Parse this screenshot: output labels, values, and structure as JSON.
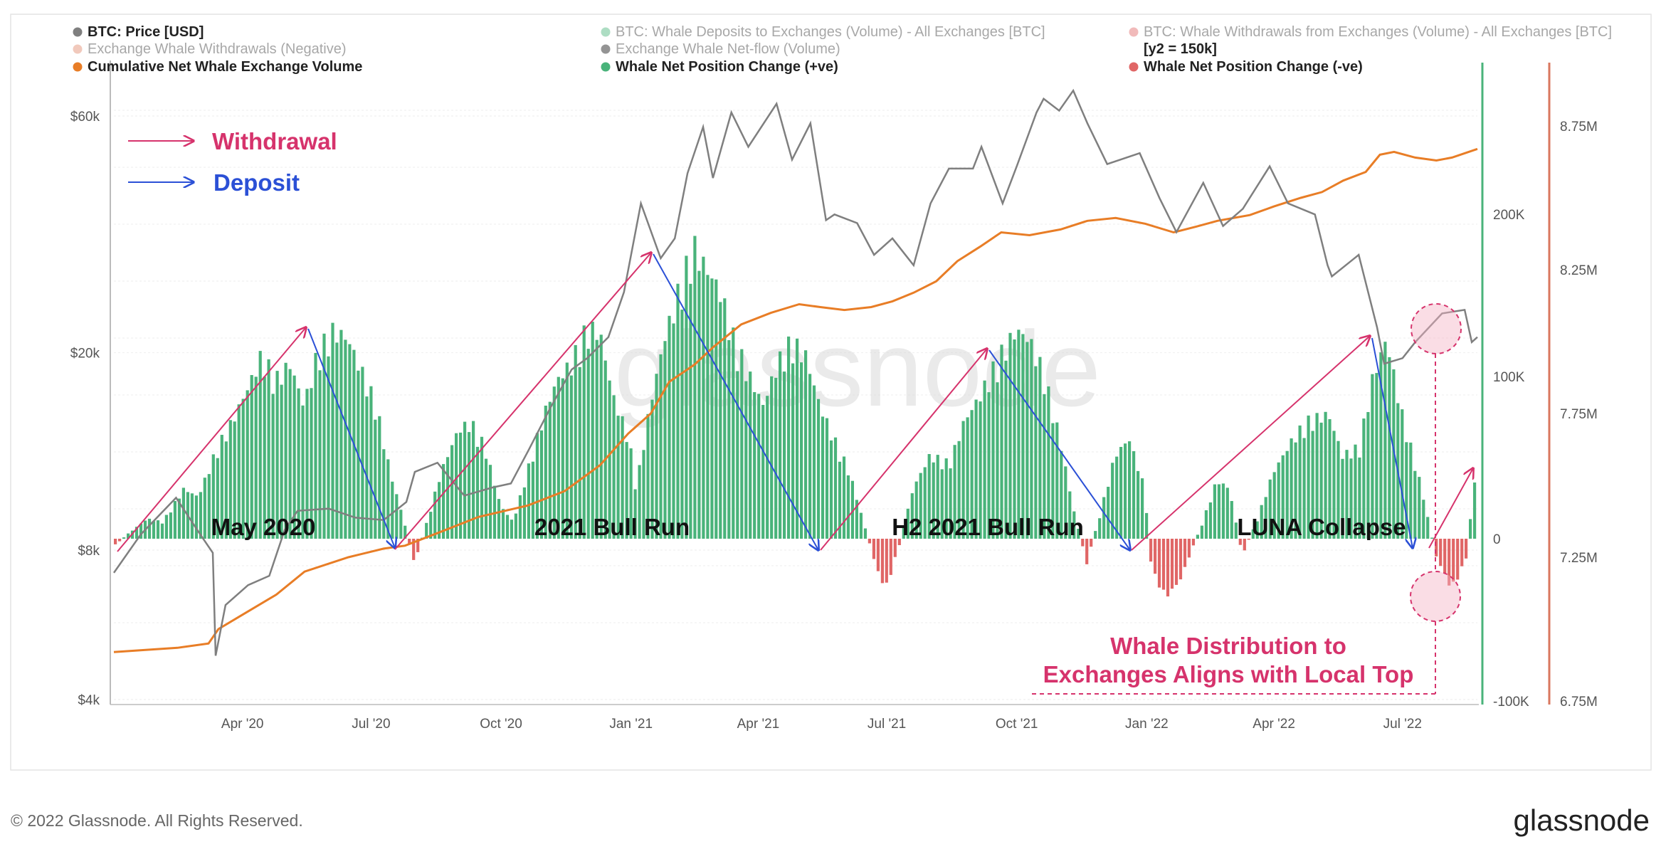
{
  "legend": [
    {
      "label": "BTC: Price [USD]",
      "color": "#7f7f7f",
      "faded": false,
      "col": 0,
      "row": 0
    },
    {
      "label": "Exchange Whale Withdrawals (Negative)",
      "color": "#e0876a",
      "faded": true,
      "col": 0,
      "row": 1
    },
    {
      "label": "Cumulative Net Whale Exchange Volume",
      "color": "#e87d26",
      "faded": false,
      "col": 0,
      "row": 2
    },
    {
      "label": "BTC: Whale Deposits to Exchanges (Volume) - All Exchanges [BTC]",
      "color": "#49b37a",
      "faded": true,
      "col": 1,
      "row": 0
    },
    {
      "label": "Exchange Whale Net-flow (Volume)",
      "color": "#111111",
      "faded": true,
      "col": 1,
      "row": 1
    },
    {
      "label": "Whale Net Position Change (+ve)",
      "color": "#49b37a",
      "faded": false,
      "col": 1,
      "row": 2
    },
    {
      "label": "BTC: Whale Withdrawals from Exchanges (Volume) - All Exchanges [BTC]",
      "color": "#e06666",
      "faded": true,
      "col": 2,
      "row": 0
    },
    {
      "label": "[y2 = 150k]",
      "color": "",
      "faded": false,
      "col": 2,
      "row": 1
    },
    {
      "label": "Whale Net Position Change (-ve)",
      "color": "#e06666",
      "faded": false,
      "col": 2,
      "row": 2
    }
  ],
  "key": {
    "withdrawal": "Withdrawal",
    "deposit": "Deposit",
    "withdrawal_color": "#d6336c",
    "deposit_color": "#2b50d6"
  },
  "annotations": {
    "may2020": "May 2020",
    "bull2021": "2021 Bull Run",
    "h2bull": "H2 2021 Bull Run",
    "luna": "LUNA Collapse",
    "callout_line1": "Whale Distribution to",
    "callout_line2": "Exchanges Aligns with Local Top",
    "callout_color": "#d6336c"
  },
  "watermark": "glassnode",
  "footer": {
    "copyright": "© 2022 Glassnode. All Rights Reserved.",
    "brand": "glassnode"
  },
  "chart_data": {
    "type": "line",
    "x_ticks": [
      "Apr '20",
      "Jul '20",
      "Oct '20",
      "Jan '21",
      "Apr '21",
      "Jul '21",
      "Oct '21",
      "Jan '22",
      "Apr '22",
      "Jul '22"
    ],
    "x_range": [
      "2020-01-01",
      "2022-08-23"
    ],
    "y_left": {
      "label": "BTC: Price [USD]",
      "scale": "log",
      "ticks": [
        "$4k",
        "$8k",
        "$20k",
        "$60k"
      ],
      "tick_values": [
        4000,
        8000,
        20000,
        60000
      ],
      "range": [
        4000,
        75000
      ]
    },
    "y_right1": {
      "label": "Whale Net Position Change [BTC]",
      "ticks": [
        "-100K",
        "0",
        "100K",
        "200K"
      ],
      "tick_values": [
        -100000,
        0,
        100000,
        200000
      ],
      "range": [
        -100000,
        300000
      ],
      "color": "#49b37a"
    },
    "y_right2": {
      "label": "Cumulative Net Whale Exchange Volume",
      "ticks": [
        "6.75M",
        "7.25M",
        "7.75M",
        "8.25M",
        "8.75M"
      ],
      "tick_values": [
        6750000,
        7250000,
        7750000,
        8250000,
        8750000
      ],
      "range": [
        6750000,
        8900000
      ],
      "color": "#e87d26"
    },
    "series": [
      {
        "name": "BTC: Price [USD]",
        "color": "#7f7f7f",
        "axis": "left",
        "points": [
          [
            "2020-01-01",
            7200
          ],
          [
            "2020-01-20",
            8600
          ],
          [
            "2020-02-14",
            10200
          ],
          [
            "2020-03-01",
            8700
          ],
          [
            "2020-03-11",
            7900
          ],
          [
            "2020-03-13",
            4900
          ],
          [
            "2020-03-20",
            6200
          ],
          [
            "2020-04-05",
            6800
          ],
          [
            "2020-04-20",
            7100
          ],
          [
            "2020-05-01",
            8800
          ],
          [
            "2020-05-10",
            9600
          ],
          [
            "2020-06-01",
            9700
          ],
          [
            "2020-06-20",
            9300
          ],
          [
            "2020-07-10",
            9200
          ],
          [
            "2020-07-26",
            10000
          ],
          [
            "2020-08-01",
            11500
          ],
          [
            "2020-08-17",
            12000
          ],
          [
            "2020-09-05",
            10300
          ],
          [
            "2020-09-25",
            10700
          ],
          [
            "2020-10-08",
            10900
          ],
          [
            "2020-10-21",
            12800
          ],
          [
            "2020-11-05",
            15500
          ],
          [
            "2020-11-20",
            18500
          ],
          [
            "2020-12-01",
            19500
          ],
          [
            "2020-12-16",
            21500
          ],
          [
            "2020-12-27",
            26500
          ],
          [
            "2021-01-08",
            40000
          ],
          [
            "2021-01-22",
            31000
          ],
          [
            "2021-02-01",
            34000
          ],
          [
            "2021-02-10",
            46000
          ],
          [
            "2021-02-21",
            57000
          ],
          [
            "2021-02-28",
            45000
          ],
          [
            "2021-03-13",
            61000
          ],
          [
            "2021-03-25",
            52000
          ],
          [
            "2021-04-14",
            63500
          ],
          [
            "2021-04-25",
            49000
          ],
          [
            "2021-05-08",
            58000
          ],
          [
            "2021-05-19",
            37000
          ],
          [
            "2021-05-25",
            38000
          ],
          [
            "2021-06-10",
            36500
          ],
          [
            "2021-06-22",
            31500
          ],
          [
            "2021-07-05",
            34000
          ],
          [
            "2021-07-20",
            30000
          ],
          [
            "2021-08-01",
            40000
          ],
          [
            "2021-08-14",
            47000
          ],
          [
            "2021-08-31",
            47000
          ],
          [
            "2021-09-06",
            52000
          ],
          [
            "2021-09-21",
            40000
          ],
          [
            "2021-10-01",
            47500
          ],
          [
            "2021-10-15",
            61000
          ],
          [
            "2021-10-20",
            65000
          ],
          [
            "2021-10-31",
            61500
          ],
          [
            "2021-11-10",
            67500
          ],
          [
            "2021-11-20",
            58000
          ],
          [
            "2021-12-04",
            48000
          ],
          [
            "2021-12-27",
            50500
          ],
          [
            "2022-01-10",
            41000
          ],
          [
            "2022-01-22",
            35000
          ],
          [
            "2022-02-10",
            44000
          ],
          [
            "2022-02-24",
            36000
          ],
          [
            "2022-03-10",
            39000
          ],
          [
            "2022-03-29",
            47500
          ],
          [
            "2022-04-11",
            40000
          ],
          [
            "2022-04-30",
            38000
          ],
          [
            "2022-05-09",
            30000
          ],
          [
            "2022-05-12",
            28500
          ],
          [
            "2022-05-31",
            31500
          ],
          [
            "2022-06-13",
            22500
          ],
          [
            "2022-06-18",
            19000
          ],
          [
            "2022-07-01",
            19500
          ],
          [
            "2022-07-10",
            21000
          ],
          [
            "2022-07-29",
            24000
          ],
          [
            "2022-08-14",
            24400
          ],
          [
            "2022-08-19",
            21000
          ],
          [
            "2022-08-23",
            21500
          ]
        ]
      },
      {
        "name": "Cumulative Net Whale Exchange Volume",
        "color": "#e87d26",
        "axis": "right2",
        "points": [
          [
            "2020-01-01",
            6920000
          ],
          [
            "2020-02-15",
            6935000
          ],
          [
            "2020-03-08",
            6950000
          ],
          [
            "2020-03-15",
            7000000
          ],
          [
            "2020-04-01",
            7050000
          ],
          [
            "2020-04-25",
            7120000
          ],
          [
            "2020-05-15",
            7200000
          ],
          [
            "2020-06-15",
            7250000
          ],
          [
            "2020-07-10",
            7280000
          ],
          [
            "2020-07-25",
            7290000
          ],
          [
            "2020-08-15",
            7330000
          ],
          [
            "2020-09-15",
            7390000
          ],
          [
            "2020-10-20",
            7430000
          ],
          [
            "2020-11-15",
            7480000
          ],
          [
            "2020-12-10",
            7570000
          ],
          [
            "2020-12-30",
            7680000
          ],
          [
            "2021-01-15",
            7750000
          ],
          [
            "2021-01-28",
            7860000
          ],
          [
            "2021-02-15",
            7920000
          ],
          [
            "2021-02-28",
            7980000
          ],
          [
            "2021-03-20",
            8060000
          ],
          [
            "2021-04-10",
            8100000
          ],
          [
            "2021-04-30",
            8130000
          ],
          [
            "2021-05-15",
            8120000
          ],
          [
            "2021-06-01",
            8110000
          ],
          [
            "2021-06-20",
            8120000
          ],
          [
            "2021-07-05",
            8140000
          ],
          [
            "2021-07-20",
            8170000
          ],
          [
            "2021-08-05",
            8210000
          ],
          [
            "2021-08-20",
            8280000
          ],
          [
            "2021-09-05",
            8330000
          ],
          [
            "2021-09-20",
            8380000
          ],
          [
            "2021-10-10",
            8370000
          ],
          [
            "2021-11-01",
            8390000
          ],
          [
            "2021-11-20",
            8420000
          ],
          [
            "2021-12-10",
            8430000
          ],
          [
            "2021-12-31",
            8410000
          ],
          [
            "2022-01-20",
            8380000
          ],
          [
            "2022-02-05",
            8400000
          ],
          [
            "2022-02-20",
            8420000
          ],
          [
            "2022-03-15",
            8440000
          ],
          [
            "2022-04-01",
            8470000
          ],
          [
            "2022-04-20",
            8500000
          ],
          [
            "2022-05-05",
            8520000
          ],
          [
            "2022-05-20",
            8560000
          ],
          [
            "2022-06-05",
            8590000
          ],
          [
            "2022-06-15",
            8650000
          ],
          [
            "2022-06-25",
            8660000
          ],
          [
            "2022-07-10",
            8640000
          ],
          [
            "2022-07-25",
            8630000
          ],
          [
            "2022-08-05",
            8640000
          ],
          [
            "2022-08-23",
            8670000
          ]
        ]
      },
      {
        "name": "Whale Net Position Change",
        "type": "bar",
        "color_pos": "#49b37a",
        "color_neg": "#e06666",
        "axis": "right1",
        "points": [
          [
            "2020-01-01",
            -5000
          ],
          [
            "2020-01-10",
            2000
          ],
          [
            "2020-01-25",
            12000
          ],
          [
            "2020-02-05",
            10000
          ],
          [
            "2020-02-20",
            30000
          ],
          [
            "2020-03-01",
            25000
          ],
          [
            "2020-03-08",
            40000
          ],
          [
            "2020-03-15",
            55000
          ],
          [
            "2020-03-25",
            70000
          ],
          [
            "2020-04-05",
            90000
          ],
          [
            "2020-04-15",
            110000
          ],
          [
            "2020-04-25",
            95000
          ],
          [
            "2020-05-05",
            105000
          ],
          [
            "2020-05-15",
            80000
          ],
          [
            "2020-05-25",
            112000
          ],
          [
            "2020-06-05",
            125000
          ],
          [
            "2020-06-15",
            120000
          ],
          [
            "2020-06-25",
            100000
          ],
          [
            "2020-07-05",
            80000
          ],
          [
            "2020-07-15",
            40000
          ],
          [
            "2020-07-25",
            10000
          ],
          [
            "2020-08-01",
            -15000
          ],
          [
            "2020-08-10",
            10000
          ],
          [
            "2020-08-20",
            40000
          ],
          [
            "2020-09-01",
            65000
          ],
          [
            "2020-09-10",
            70000
          ],
          [
            "2020-09-20",
            55000
          ],
          [
            "2020-10-01",
            20000
          ],
          [
            "2020-10-10",
            10000
          ],
          [
            "2020-10-20",
            40000
          ],
          [
            "2020-11-01",
            75000
          ],
          [
            "2020-11-10",
            95000
          ],
          [
            "2020-11-20",
            105000
          ],
          [
            "2020-12-01",
            125000
          ],
          [
            "2020-12-10",
            125000
          ],
          [
            "2020-12-20",
            85000
          ],
          [
            "2020-12-31",
            60000
          ],
          [
            "2021-01-05",
            30000
          ],
          [
            "2021-01-15",
            80000
          ],
          [
            "2021-01-25",
            120000
          ],
          [
            "2021-02-05",
            150000
          ],
          [
            "2021-02-15",
            175000
          ],
          [
            "2021-02-25",
            160000
          ],
          [
            "2021-03-05",
            150000
          ],
          [
            "2021-03-15",
            120000
          ],
          [
            "2021-03-25",
            100000
          ],
          [
            "2021-04-05",
            80000
          ],
          [
            "2021-04-15",
            105000
          ],
          [
            "2021-04-25",
            118000
          ],
          [
            "2021-05-05",
            110000
          ],
          [
            "2021-05-15",
            80000
          ],
          [
            "2021-05-25",
            60000
          ],
          [
            "2021-06-05",
            40000
          ],
          [
            "2021-06-15",
            10000
          ],
          [
            "2021-06-25",
            -20000
          ],
          [
            "2021-07-01",
            -30000
          ],
          [
            "2021-07-10",
            -5000
          ],
          [
            "2021-07-20",
            30000
          ],
          [
            "2021-08-01",
            50000
          ],
          [
            "2021-08-15",
            45000
          ],
          [
            "2021-08-25",
            70000
          ],
          [
            "2021-09-05",
            85000
          ],
          [
            "2021-09-20",
            110000
          ],
          [
            "2021-10-01",
            125000
          ],
          [
            "2021-10-10",
            120000
          ],
          [
            "2021-10-20",
            100000
          ],
          [
            "2021-11-01",
            60000
          ],
          [
            "2021-11-10",
            20000
          ],
          [
            "2021-11-20",
            -15000
          ],
          [
            "2021-12-01",
            20000
          ],
          [
            "2021-12-10",
            50000
          ],
          [
            "2021-12-20",
            60000
          ],
          [
            "2021-12-31",
            30000
          ],
          [
            "2022-01-05",
            -20000
          ],
          [
            "2022-01-15",
            -35000
          ],
          [
            "2022-01-25",
            -25000
          ],
          [
            "2022-02-10",
            10000
          ],
          [
            "2022-02-20",
            35000
          ],
          [
            "2022-03-01",
            30000
          ],
          [
            "2022-03-10",
            -10000
          ],
          [
            "2022-03-20",
            10000
          ],
          [
            "2022-04-01",
            40000
          ],
          [
            "2022-04-15",
            60000
          ],
          [
            "2022-04-25",
            70000
          ],
          [
            "2022-05-10",
            75000
          ],
          [
            "2022-05-20",
            50000
          ],
          [
            "2022-06-01",
            55000
          ],
          [
            "2022-06-10",
            95000
          ],
          [
            "2022-06-20",
            120000
          ],
          [
            "2022-07-01",
            75000
          ],
          [
            "2022-07-15",
            30000
          ],
          [
            "2022-07-25",
            -10000
          ],
          [
            "2022-08-05",
            -30000
          ],
          [
            "2022-08-15",
            -15000
          ],
          [
            "2022-08-20",
            25000
          ],
          [
            "2022-08-23",
            40000
          ]
        ]
      }
    ],
    "grid": true,
    "legend_position": "top"
  }
}
